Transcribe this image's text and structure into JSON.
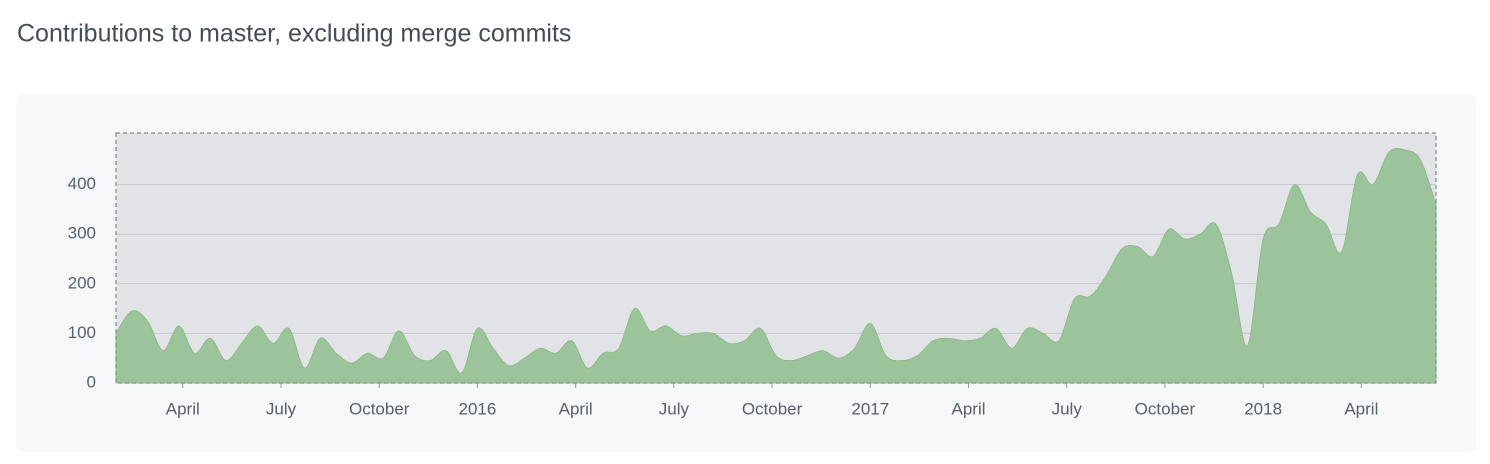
{
  "chart_data": {
    "type": "area",
    "title": "Contributions to master, excluding merge commits",
    "color": "#9cc49a",
    "grid": true,
    "x": [
      2015.08,
      2015.12,
      2015.16,
      2015.2,
      2015.24,
      2015.28,
      2015.32,
      2015.36,
      2015.4,
      2015.44,
      2015.48,
      2015.52,
      2015.56,
      2015.6,
      2015.64,
      2015.68,
      2015.72,
      2015.76,
      2015.8,
      2015.84,
      2015.88,
      2015.92,
      2015.96,
      2016.0,
      2016.04,
      2016.08,
      2016.12,
      2016.16,
      2016.2,
      2016.24,
      2016.28,
      2016.32,
      2016.36,
      2016.4,
      2016.44,
      2016.48,
      2016.52,
      2016.56,
      2016.6,
      2016.64,
      2016.68,
      2016.72,
      2016.76,
      2016.8,
      2016.84,
      2016.88,
      2016.92,
      2016.96,
      2017.0,
      2017.04,
      2017.08,
      2017.12,
      2017.16,
      2017.2,
      2017.24,
      2017.28,
      2017.32,
      2017.36,
      2017.4,
      2017.44,
      2017.48,
      2017.52,
      2017.56,
      2017.6,
      2017.64,
      2017.68,
      2017.72,
      2017.76,
      2017.8,
      2017.84,
      2017.88,
      2017.92,
      2017.96,
      2018.0,
      2018.04,
      2018.08,
      2018.12,
      2018.16,
      2018.2,
      2018.24,
      2018.28,
      2018.32,
      2018.36,
      2018.4,
      2018.44
    ],
    "values": [
      100,
      145,
      125,
      65,
      115,
      60,
      90,
      45,
      80,
      115,
      80,
      110,
      30,
      90,
      60,
      40,
      60,
      50,
      105,
      55,
      45,
      65,
      20,
      110,
      70,
      35,
      50,
      70,
      60,
      85,
      30,
      60,
      70,
      150,
      105,
      115,
      95,
      100,
      100,
      80,
      85,
      110,
      55,
      45,
      55,
      65,
      50,
      70,
      120,
      55,
      45,
      55,
      85,
      90,
      85,
      90,
      110,
      70,
      110,
      100,
      85,
      170,
      175,
      215,
      270,
      275,
      255,
      310,
      290,
      300,
      320,
      220,
      75,
      290,
      320,
      400,
      345,
      320,
      265,
      420,
      400,
      465,
      470,
      450,
      360
    ],
    "xlim": [
      2015.08,
      2018.44
    ],
    "xticks": [
      {
        "value": 2015.25,
        "label": "April"
      },
      {
        "value": 2015.5,
        "label": "July"
      },
      {
        "value": 2015.75,
        "label": "October"
      },
      2016,
      {
        "value": 2016.25,
        "label": "April"
      },
      {
        "value": 2016.5,
        "label": "July"
      },
      {
        "value": 2016.75,
        "label": "October"
      },
      2017,
      {
        "value": 2017.25,
        "label": "April"
      },
      {
        "value": 2017.5,
        "label": "July"
      },
      {
        "value": 2017.75,
        "label": "October"
      },
      2018,
      {
        "value": 2018.25,
        "label": "April"
      }
    ],
    "ylim": [
      0,
      504
    ],
    "yticks": [
      0,
      100,
      200,
      300,
      400
    ]
  }
}
